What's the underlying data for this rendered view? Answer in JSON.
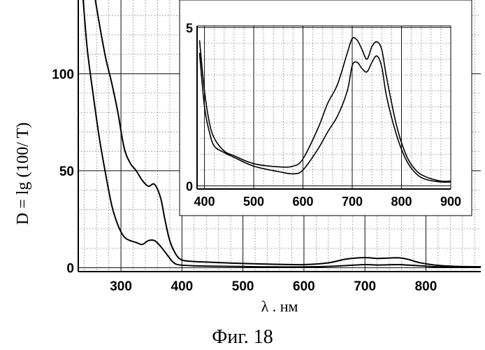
{
  "caption": "Фиг. 18",
  "chart_data": [
    {
      "type": "line",
      "xlabel": "λ . нм",
      "ylabel": "D = lg (100/ T)",
      "xlim": [
        230,
        890
      ],
      "ylim": [
        -2,
        138
      ],
      "x_ticks": [
        300,
        400,
        500,
        600,
        700,
        800
      ],
      "y_ticks": [
        0,
        50,
        100
      ],
      "grid": "on (dotted minor, solid major)",
      "series": [
        {
          "x": [
            238,
            245,
            255,
            265,
            275,
            285,
            295,
            305,
            315,
            325,
            335,
            345,
            355,
            365,
            375,
            385,
            395,
            420,
            450,
            500,
            550,
            600,
            650,
            680,
            700,
            720,
            740,
            755,
            780,
            820,
            860,
            890
          ],
          "values": [
            138,
            112,
            88,
            66,
            48,
            32,
            22,
            16,
            14,
            13,
            12,
            14,
            14,
            11,
            7,
            3,
            1.5,
            1.0,
            0.8,
            0.6,
            0.4,
            0.4,
            0.8,
            1.3,
            1.6,
            1.4,
            1.5,
            1.6,
            1.2,
            0.4,
            0.2,
            0.2
          ]
        },
        {
          "x": [
            258,
            265,
            275,
            285,
            295,
            305,
            315,
            325,
            335,
            345,
            355,
            365,
            372,
            380,
            390,
            400,
            420,
            450,
            500,
            550,
            600,
            640,
            670,
            700,
            720,
            740,
            755,
            770,
            790,
            820,
            860,
            890
          ],
          "values": [
            138,
            125,
            108,
            95,
            80,
            62,
            54,
            50,
            45,
            42,
            43,
            36,
            25,
            14,
            7,
            4,
            3.2,
            2.8,
            2.2,
            1.8,
            1.6,
            2.5,
            4.5,
            5.2,
            4.8,
            5.0,
            5.1,
            4.4,
            2.6,
            1.2,
            0.6,
            0.5
          ]
        }
      ]
    },
    {
      "type": "line",
      "xlim": [
        385,
        900
      ],
      "ylim": [
        -0.1,
        5.05
      ],
      "x_ticks": [
        400,
        500,
        600,
        700,
        800,
        900
      ],
      "y_ticks": [
        0,
        5
      ],
      "grid": "on (dotted minor, solid major)",
      "series": [
        {
          "x": [
            390,
            400,
            410,
            420,
            440,
            460,
            500,
            550,
            580,
            600,
            630,
            650,
            670,
            690,
            700,
            710,
            720,
            730,
            740,
            750,
            760,
            770,
            790,
            810,
            830,
            850,
            880,
            900
          ],
          "values": [
            4.2,
            2.5,
            1.7,
            1.25,
            1.05,
            0.9,
            0.62,
            0.45,
            0.38,
            0.5,
            1.15,
            1.7,
            2.2,
            3.0,
            3.8,
            3.9,
            3.7,
            3.6,
            3.9,
            4.1,
            3.75,
            2.8,
            1.6,
            0.8,
            0.38,
            0.2,
            0.12,
            0.12
          ]
        },
        {
          "x": [
            390,
            400,
            410,
            420,
            440,
            460,
            500,
            550,
            580,
            600,
            630,
            650,
            670,
            690,
            700,
            710,
            720,
            730,
            740,
            750,
            760,
            770,
            790,
            810,
            830,
            850,
            880,
            900
          ],
          "values": [
            4.6,
            3.0,
            2.0,
            1.5,
            1.1,
            0.95,
            0.7,
            0.6,
            0.62,
            0.85,
            1.8,
            2.6,
            3.2,
            4.2,
            4.65,
            4.6,
            4.3,
            4.0,
            4.4,
            4.55,
            4.3,
            3.4,
            1.9,
            0.95,
            0.48,
            0.28,
            0.15,
            0.15
          ]
        }
      ]
    }
  ]
}
